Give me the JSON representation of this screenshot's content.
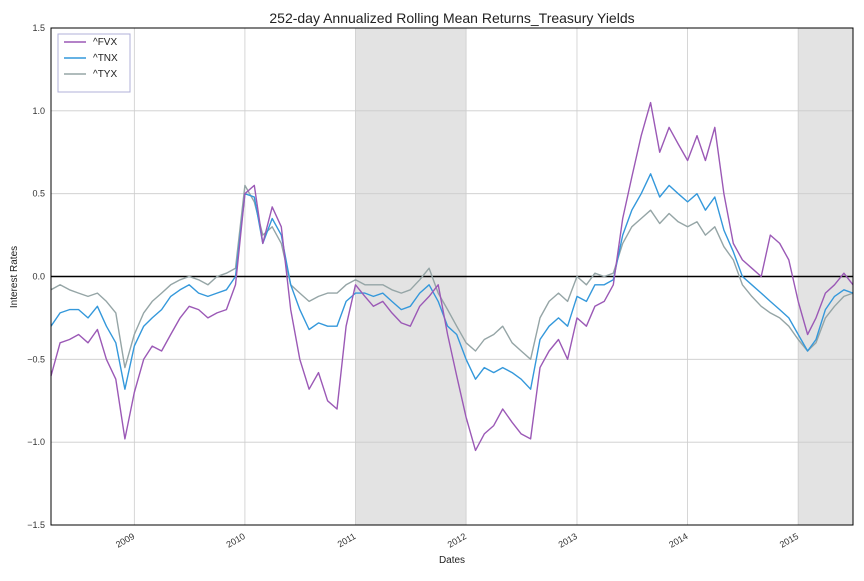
{
  "chart_data": {
    "type": "line",
    "title": "252-day Annualized Rolling Mean Returns_Treasury Yields",
    "xlabel": "Dates",
    "ylabel": "Interest Rates",
    "xlim": [
      "2008-04-01",
      "2015-07-01"
    ],
    "ylim": [
      -1.5,
      1.5
    ],
    "yticks": [
      -1.5,
      -1.0,
      -0.5,
      0.0,
      0.5,
      1.0,
      1.5
    ],
    "ytick_labels": [
      "−1.5",
      "−1.0",
      "−0.5",
      "0.0",
      "0.5",
      "1.0",
      "1.5"
    ],
    "xticks": [
      "2009-01-01",
      "2010-01-01",
      "2011-01-01",
      "2012-01-01",
      "2013-01-01",
      "2014-01-01",
      "2015-01-01"
    ],
    "xtick_labels": [
      "2009",
      "2010",
      "2011",
      "2012",
      "2013",
      "2014",
      "2015"
    ],
    "grid": true,
    "legend_position": "top-left",
    "zero_line": 0.0,
    "shaded_regions": [
      {
        "start": "2011-01-01",
        "end": "2012-01-01"
      },
      {
        "start": "2015-01-01",
        "end": "2015-07-01"
      }
    ],
    "x": [
      "2008-04-01",
      "2008-05-01",
      "2008-06-01",
      "2008-07-01",
      "2008-08-01",
      "2008-09-01",
      "2008-10-01",
      "2008-11-01",
      "2008-12-01",
      "2009-01-01",
      "2009-02-01",
      "2009-03-01",
      "2009-04-01",
      "2009-05-01",
      "2009-06-01",
      "2009-07-01",
      "2009-08-01",
      "2009-09-01",
      "2009-10-01",
      "2009-11-01",
      "2009-12-01",
      "2010-01-01",
      "2010-02-01",
      "2010-03-01",
      "2010-04-01",
      "2010-05-01",
      "2010-06-01",
      "2010-07-01",
      "2010-08-01",
      "2010-09-01",
      "2010-10-01",
      "2010-11-01",
      "2010-12-01",
      "2011-01-01",
      "2011-02-01",
      "2011-03-01",
      "2011-04-01",
      "2011-05-01",
      "2011-06-01",
      "2011-07-01",
      "2011-08-01",
      "2011-09-01",
      "2011-10-01",
      "2011-11-01",
      "2011-12-01",
      "2012-01-01",
      "2012-02-01",
      "2012-03-01",
      "2012-04-01",
      "2012-05-01",
      "2012-06-01",
      "2012-07-01",
      "2012-08-01",
      "2012-09-01",
      "2012-10-01",
      "2012-11-01",
      "2012-12-01",
      "2013-01-01",
      "2013-02-01",
      "2013-03-01",
      "2013-04-01",
      "2013-05-01",
      "2013-06-01",
      "2013-07-01",
      "2013-08-01",
      "2013-09-01",
      "2013-10-01",
      "2013-11-01",
      "2013-12-01",
      "2014-01-01",
      "2014-02-01",
      "2014-03-01",
      "2014-04-01",
      "2014-05-01",
      "2014-06-01",
      "2014-07-01",
      "2014-08-01",
      "2014-09-01",
      "2014-10-01",
      "2014-11-01",
      "2014-12-01",
      "2015-01-01",
      "2015-02-01",
      "2015-03-01",
      "2015-04-01",
      "2015-05-01",
      "2015-06-01",
      "2015-07-01"
    ],
    "series": [
      {
        "name": "^FVX",
        "color": "#9b59b6",
        "values": [
          -0.6,
          -0.4,
          -0.38,
          -0.35,
          -0.4,
          -0.32,
          -0.5,
          -0.62,
          -0.98,
          -0.7,
          -0.5,
          -0.42,
          -0.45,
          -0.35,
          -0.25,
          -0.18,
          -0.2,
          -0.25,
          -0.22,
          -0.2,
          -0.05,
          0.5,
          0.55,
          0.2,
          0.42,
          0.3,
          -0.2,
          -0.5,
          -0.68,
          -0.58,
          -0.75,
          -0.8,
          -0.3,
          -0.05,
          -0.12,
          -0.18,
          -0.15,
          -0.22,
          -0.28,
          -0.3,
          -0.18,
          -0.12,
          -0.05,
          -0.35,
          -0.6,
          -0.85,
          -1.05,
          -0.95,
          -0.9,
          -0.8,
          -0.88,
          -0.95,
          -0.98,
          -0.55,
          -0.45,
          -0.38,
          -0.5,
          -0.25,
          -0.3,
          -0.18,
          -0.15,
          -0.05,
          0.35,
          0.6,
          0.85,
          1.05,
          0.75,
          0.9,
          0.8,
          0.7,
          0.85,
          0.7,
          0.9,
          0.5,
          0.2,
          0.1,
          0.05,
          0.0,
          0.25,
          0.2,
          0.1,
          -0.15,
          -0.35,
          -0.25,
          -0.1,
          -0.05,
          0.02,
          -0.05
        ]
      },
      {
        "name": "^TNX",
        "color": "#3498db",
        "values": [
          -0.3,
          -0.22,
          -0.2,
          -0.2,
          -0.25,
          -0.18,
          -0.3,
          -0.4,
          -0.68,
          -0.42,
          -0.3,
          -0.25,
          -0.2,
          -0.12,
          -0.08,
          -0.05,
          -0.1,
          -0.12,
          -0.1,
          -0.08,
          0.0,
          0.5,
          0.48,
          0.2,
          0.35,
          0.25,
          -0.05,
          -0.2,
          -0.32,
          -0.28,
          -0.3,
          -0.3,
          -0.15,
          -0.1,
          -0.1,
          -0.12,
          -0.1,
          -0.15,
          -0.2,
          -0.18,
          -0.1,
          -0.05,
          -0.15,
          -0.3,
          -0.35,
          -0.5,
          -0.62,
          -0.55,
          -0.58,
          -0.55,
          -0.58,
          -0.62,
          -0.68,
          -0.38,
          -0.3,
          -0.25,
          -0.3,
          -0.12,
          -0.15,
          -0.05,
          -0.05,
          -0.02,
          0.25,
          0.4,
          0.5,
          0.62,
          0.48,
          0.55,
          0.5,
          0.45,
          0.5,
          0.4,
          0.48,
          0.28,
          0.15,
          0.0,
          -0.05,
          -0.1,
          -0.15,
          -0.2,
          -0.25,
          -0.35,
          -0.45,
          -0.38,
          -0.2,
          -0.12,
          -0.08,
          -0.1
        ]
      },
      {
        "name": "^TYX",
        "color": "#95a5a6",
        "values": [
          -0.08,
          -0.05,
          -0.08,
          -0.1,
          -0.12,
          -0.1,
          -0.15,
          -0.22,
          -0.55,
          -0.35,
          -0.22,
          -0.15,
          -0.1,
          -0.05,
          -0.02,
          0.0,
          -0.02,
          -0.05,
          0.0,
          0.02,
          0.05,
          0.55,
          0.45,
          0.25,
          0.3,
          0.2,
          -0.05,
          -0.1,
          -0.15,
          -0.12,
          -0.1,
          -0.1,
          -0.05,
          -0.02,
          -0.05,
          -0.05,
          -0.05,
          -0.08,
          -0.1,
          -0.08,
          -0.02,
          0.05,
          -0.1,
          -0.2,
          -0.3,
          -0.4,
          -0.45,
          -0.38,
          -0.35,
          -0.3,
          -0.4,
          -0.45,
          -0.5,
          -0.25,
          -0.15,
          -0.1,
          -0.15,
          0.0,
          -0.05,
          0.02,
          0.0,
          0.02,
          0.2,
          0.3,
          0.35,
          0.4,
          0.32,
          0.38,
          0.33,
          0.3,
          0.33,
          0.25,
          0.3,
          0.18,
          0.1,
          -0.05,
          -0.12,
          -0.18,
          -0.22,
          -0.25,
          -0.3,
          -0.38,
          -0.45,
          -0.4,
          -0.25,
          -0.18,
          -0.12,
          -0.1
        ]
      }
    ]
  }
}
